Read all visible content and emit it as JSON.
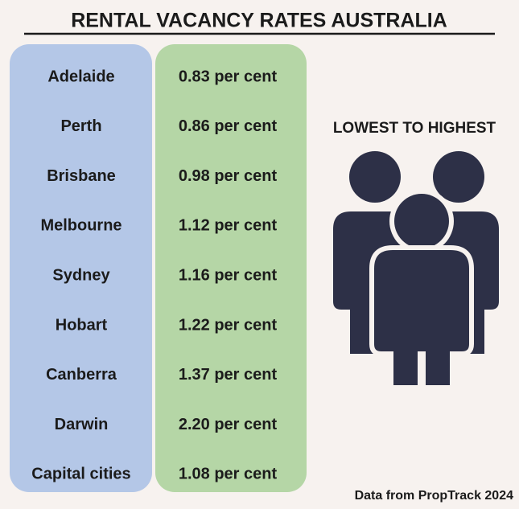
{
  "header": {
    "title": "RENTAL VACANCY RATES AUSTRALIA"
  },
  "table": {
    "rows": [
      [
        "Adelaide",
        "0.83 per cent"
      ],
      [
        "Perth",
        "0.86 per cent"
      ],
      [
        "Brisbane",
        "0.98 per cent"
      ],
      [
        "Melbourne",
        "1.12 per cent"
      ],
      [
        "Sydney",
        "1.16 per cent"
      ],
      [
        "Hobart",
        "1.22 per cent"
      ],
      [
        "Canberra",
        "1.37 per cent"
      ],
      [
        "Darwin",
        "2.20 per cent"
      ],
      [
        "Capital cities",
        "1.08 per cent"
      ]
    ]
  },
  "side": {
    "label": "LOWEST TO HIGHEST"
  },
  "source": "Data from PropTrack 2024"
}
